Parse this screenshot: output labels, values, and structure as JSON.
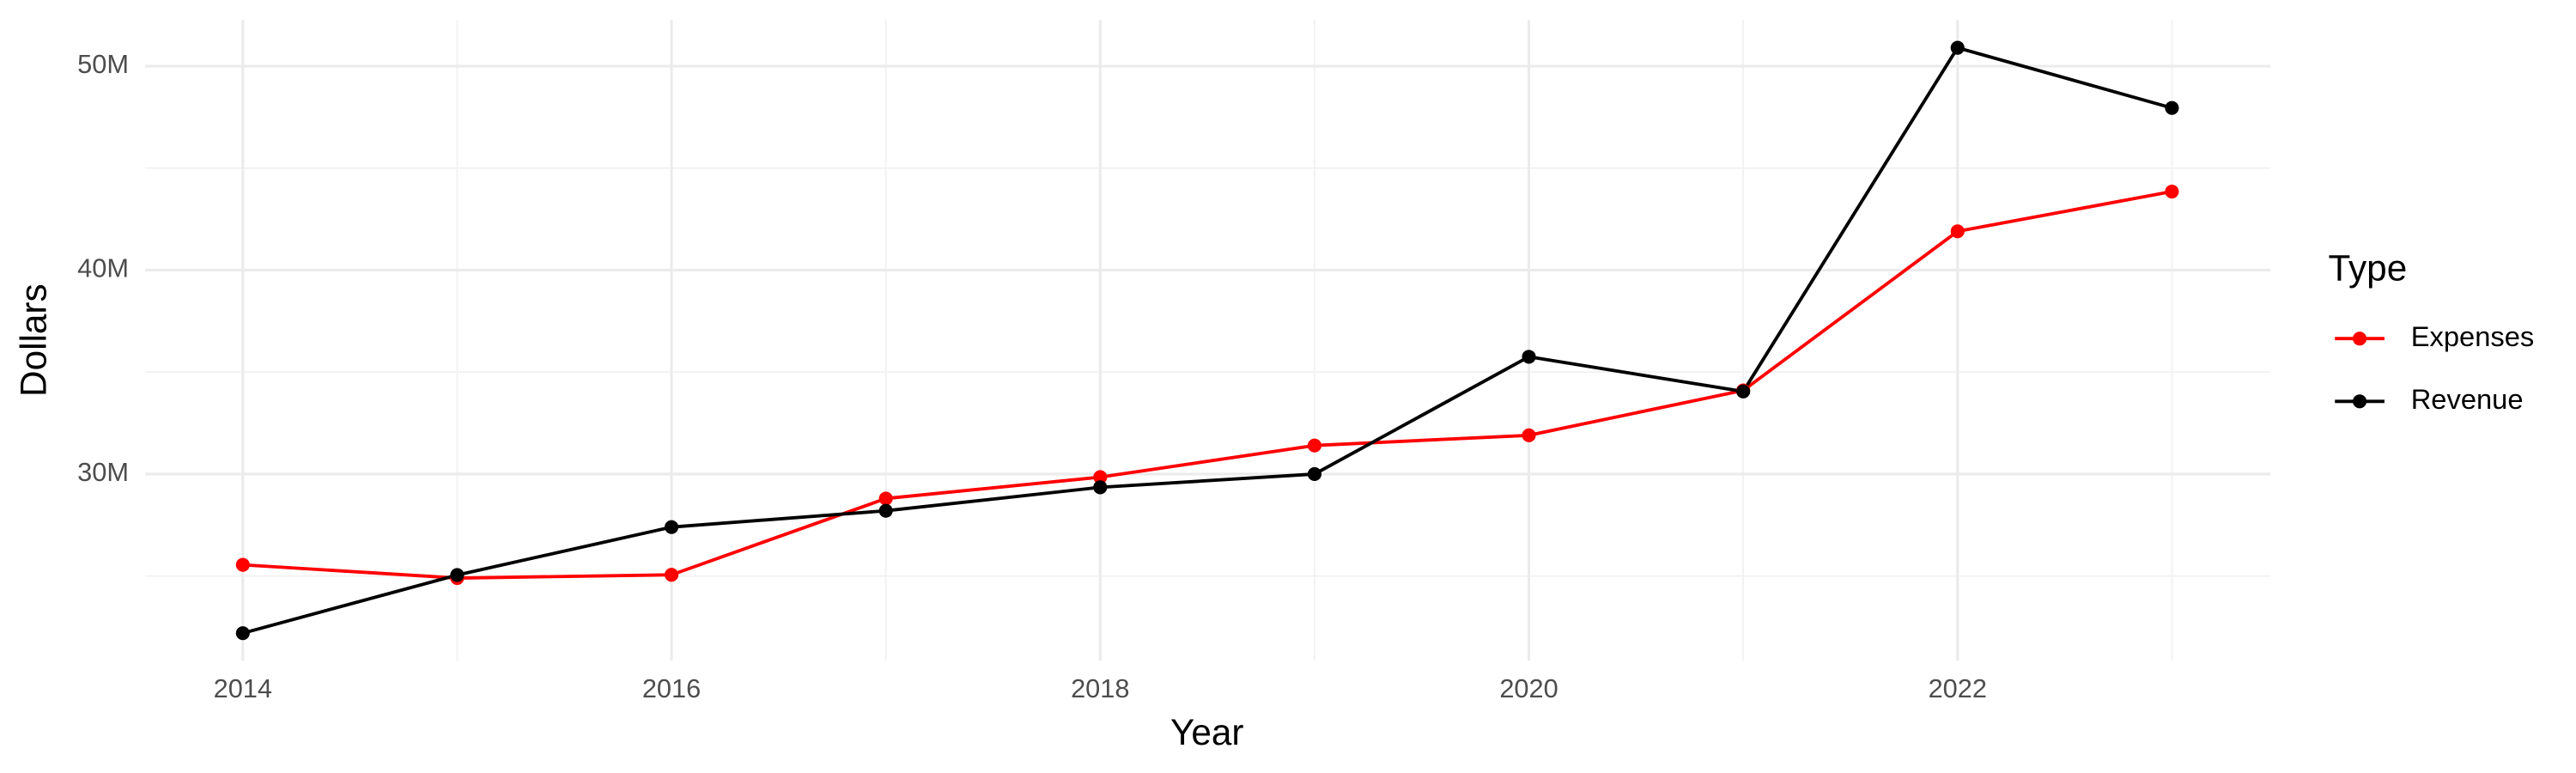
{
  "chart_data": {
    "type": "line",
    "x_label": "Year",
    "y_label": "Dollars",
    "legend_title": "Type",
    "x": [
      2014,
      2015,
      2016,
      2017,
      2018,
      2019,
      2020,
      2021,
      2022,
      2023
    ],
    "series": [
      {
        "name": "Expenses",
        "color": "#ff0000",
        "values": [
          25550000,
          24900000,
          25060000,
          28800000,
          29850000,
          31400000,
          31900000,
          34100000,
          41900000,
          43850000
        ]
      },
      {
        "name": "Revenue",
        "color": "#000000",
        "values": [
          22200000,
          25050000,
          27400000,
          28200000,
          29350000,
          30000000,
          35750000,
          34050000,
          50900000,
          47950000
        ]
      }
    ],
    "xlim": [
      2013.545,
      2023.46
    ],
    "xticks": [
      2014,
      2016,
      2018,
      2020,
      2022
    ],
    "ylim": [
      20850000,
      52270000
    ],
    "yticks": [
      {
        "value": 30000000,
        "label": "30M"
      },
      {
        "value": 40000000,
        "label": "40M"
      },
      {
        "value": 50000000,
        "label": "50M"
      }
    ],
    "grid": true,
    "legend": "right"
  }
}
